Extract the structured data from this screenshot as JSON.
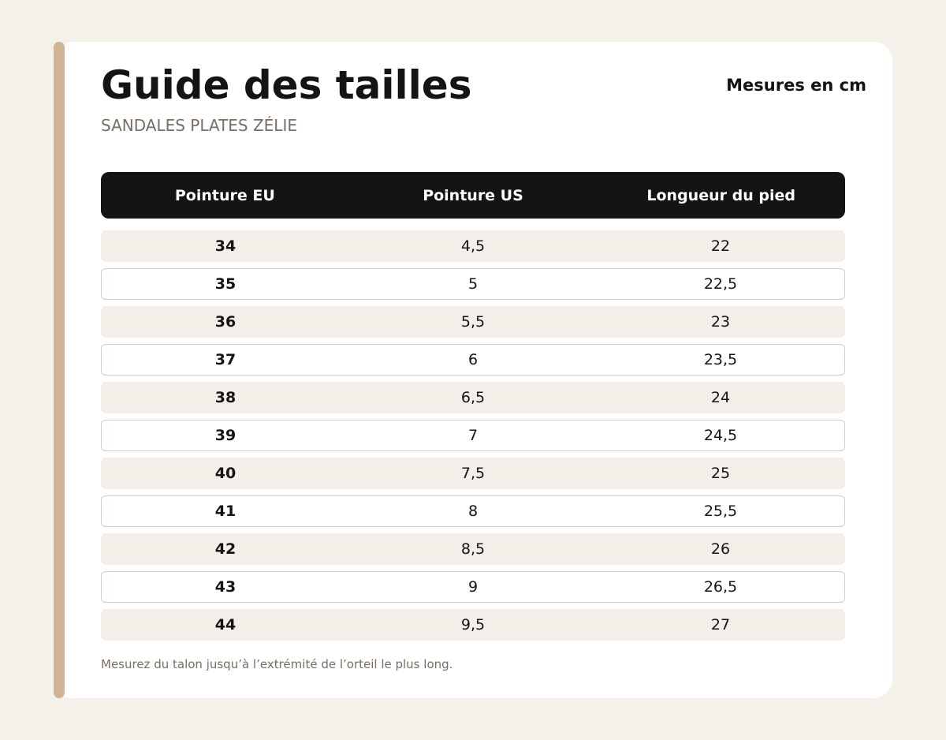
{
  "header": {
    "title": "Guide des tailles",
    "subtitle": "SANDALES PLATES ZÉLIE",
    "unit_label": "Mesures en cm"
  },
  "table": {
    "columns": [
      "Pointure EU",
      "Pointure US",
      "Longueur du pied"
    ],
    "rows": [
      [
        "34",
        "4,5",
        "22"
      ],
      [
        "35",
        "5",
        "22,5"
      ],
      [
        "36",
        "5,5",
        "23"
      ],
      [
        "37",
        "6",
        "23,5"
      ],
      [
        "38",
        "6,5",
        "24"
      ],
      [
        "39",
        "7",
        "24,5"
      ],
      [
        "40",
        "7,5",
        "25"
      ],
      [
        "41",
        "8",
        "25,5"
      ],
      [
        "42",
        "8,5",
        "26"
      ],
      [
        "43",
        "9",
        "26,5"
      ],
      [
        "44",
        "9,5",
        "27"
      ]
    ]
  },
  "footnote": "Mesurez du talon jusqu’à l’extrémité de l’orteil le plus long.",
  "colors": {
    "background": "#f4f0ea",
    "accent": "#cfb595",
    "header_bg": "#141414",
    "row_shaded": "#f2eee8",
    "row_border": "#d9cdbf"
  }
}
